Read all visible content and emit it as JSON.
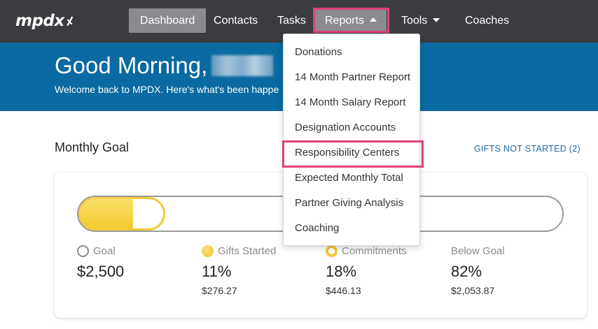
{
  "app": {
    "logo_text": "mpdx"
  },
  "nav": {
    "items": [
      {
        "label": "Dashboard"
      },
      {
        "label": "Contacts"
      },
      {
        "label": "Tasks"
      },
      {
        "label": "Reports"
      },
      {
        "label": "Tools"
      },
      {
        "label": "Coaches"
      }
    ],
    "active": "Dashboard",
    "open_menu": "Reports"
  },
  "banner": {
    "greeting": "Good Morning,",
    "subtitle": "Welcome back to MPDX. Here's what's been happe"
  },
  "reports_menu": {
    "items": [
      {
        "label": "Donations"
      },
      {
        "label": "14 Month Partner Report"
      },
      {
        "label": "14 Month Salary Report"
      },
      {
        "label": "Designation Accounts"
      },
      {
        "label": "Responsibility Centers"
      },
      {
        "label": "Expected Monthly Total"
      },
      {
        "label": "Partner Giving Analysis"
      },
      {
        "label": "Coaching"
      }
    ],
    "highlighted": "Responsibility Centers"
  },
  "monthly_goal": {
    "title": "Monthly Goal",
    "gifts_link": "GIFTS NOT STARTED (2)",
    "progress": {
      "started_fraction": 0.11,
      "commitments_fraction": 0.18
    },
    "stats": {
      "goal": {
        "label": "Goal",
        "value": "$2,500"
      },
      "started": {
        "label": "Gifts Started",
        "value": "11%",
        "amount": "$276.27"
      },
      "commitments": {
        "label": "Commitments",
        "value": "18%",
        "amount": "$446.13"
      },
      "below": {
        "label": "Below Goal",
        "value": "82%",
        "amount": "$2,053.87"
      }
    }
  },
  "colors": {
    "nav_bg": "#3a3c40",
    "banner_bg": "#0a6aa1",
    "highlight": "#e0407a",
    "gold": "#f2c93c",
    "link": "#1c6aa0"
  }
}
